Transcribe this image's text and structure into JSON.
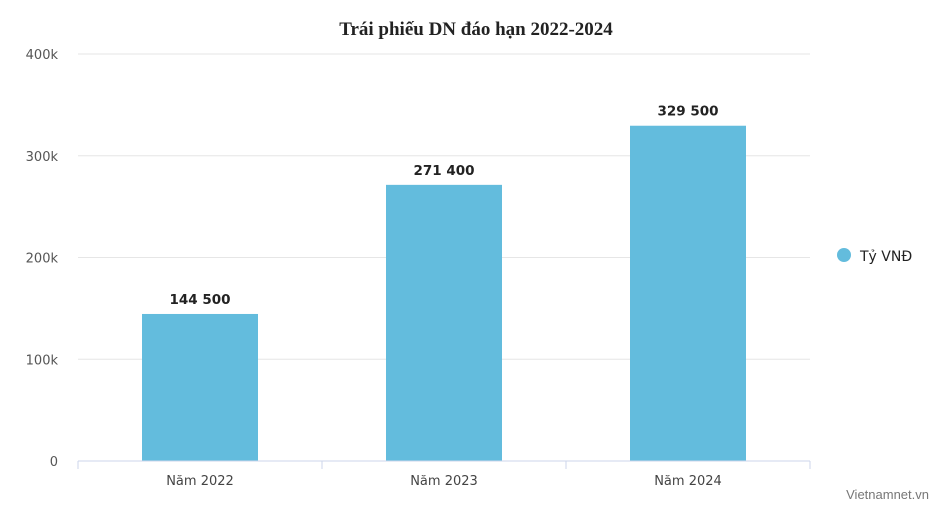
{
  "chart_data": {
    "type": "bar",
    "title": "Trái phiếu DN đáo hạn 2022-2024",
    "categories": [
      "Năm 2022",
      "Năm 2023",
      "Năm 2024"
    ],
    "series": [
      {
        "name": "Tỷ VNĐ",
        "values": [
          144500,
          271400,
          329500
        ],
        "labels": [
          "144 500",
          "271 400",
          "329 500"
        ],
        "color": "#63bcdd"
      }
    ],
    "yticks": [
      0,
      100000,
      200000,
      300000,
      400000
    ],
    "ytick_labels": [
      "0",
      "100k",
      "200k",
      "300k",
      "400k"
    ],
    "ylim": [
      0,
      400000
    ],
    "xlabel": "",
    "ylabel": "",
    "grid": true,
    "legend_position": "right"
  },
  "credit": "Vietnamnet.vn",
  "colors": {
    "gridline": "#e6e6e6",
    "axis": "#ccd6eb"
  }
}
